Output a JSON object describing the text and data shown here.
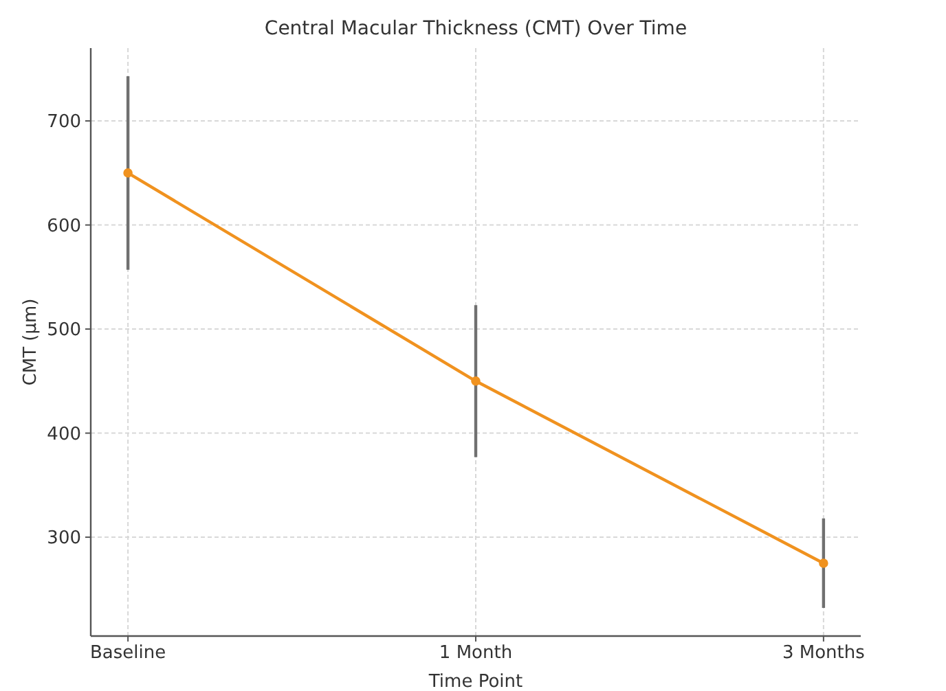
{
  "chart_data": {
    "type": "line",
    "title": "Central Macular Thickness (CMT) Over Time",
    "xlabel": "Time Point",
    "ylabel": "CMT (µm)",
    "categories": [
      "Baseline",
      "1 Month",
      "3 Months"
    ],
    "series": [
      {
        "color": "#f0921f",
        "values": [
          650,
          450,
          275
        ],
        "errors": [
          93,
          73,
          43
        ]
      }
    ],
    "ylim": [
      205,
      770
    ],
    "yticks": [
      300,
      400,
      500,
      600,
      700
    ],
    "grid": true,
    "marker": "circle",
    "line_style": "solid"
  }
}
